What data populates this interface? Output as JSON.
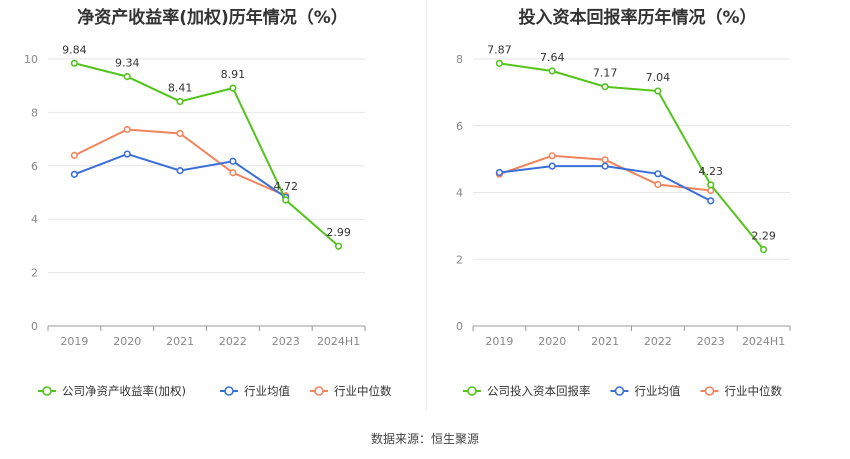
{
  "source_text": "数据来源：恒生聚源",
  "colors": {
    "company": "#52c41a",
    "avg": "#3a6fd8",
    "median": "#f0845c",
    "grid": "#e6e6e6",
    "axis": "#999999"
  },
  "chart_data": [
    {
      "type": "line",
      "title": "净资产收益率(加权)历年情况（%）",
      "categories": [
        "2019",
        "2020",
        "2021",
        "2022",
        "2023",
        "2024H1"
      ],
      "ylim": [
        0,
        10
      ],
      "yticks": [
        0,
        2,
        4,
        6,
        8,
        10
      ],
      "grid": true,
      "legend_position": "bottom",
      "series": [
        {
          "name": "公司净资产收益率(加权)",
          "values": [
            9.84,
            9.34,
            8.41,
            8.91,
            4.72,
            2.99
          ],
          "labels": [
            "9.84",
            "9.34",
            "8.41",
            "8.91",
            "4.72",
            "2.99"
          ],
          "color": "#52c41a"
        },
        {
          "name": "行业均值",
          "values": [
            5.68,
            6.44,
            5.82,
            6.17,
            4.82,
            null
          ],
          "color": "#3a6fd8"
        },
        {
          "name": "行业中位数",
          "values": [
            6.39,
            7.36,
            7.21,
            5.74,
            4.88,
            null
          ],
          "color": "#f0845c"
        }
      ]
    },
    {
      "type": "line",
      "title": "投入资本回报率历年情况（%）",
      "categories": [
        "2019",
        "2020",
        "2021",
        "2022",
        "2023",
        "2024H1"
      ],
      "ylim": [
        0,
        8
      ],
      "yticks": [
        0,
        2,
        4,
        6,
        8
      ],
      "grid": true,
      "legend_position": "bottom",
      "series": [
        {
          "name": "公司投入资本回报率",
          "values": [
            7.87,
            7.64,
            7.17,
            7.04,
            4.23,
            2.29
          ],
          "labels": [
            "7.87",
            "7.64",
            "7.17",
            "7.04",
            "4.23",
            "2.29"
          ],
          "color": "#52c41a"
        },
        {
          "name": "行业均值",
          "values": [
            4.6,
            4.79,
            4.79,
            4.56,
            3.75,
            null
          ],
          "color": "#3a6fd8"
        },
        {
          "name": "行业中位数",
          "values": [
            4.55,
            5.1,
            4.98,
            4.24,
            4.06,
            null
          ],
          "color": "#f0845c"
        }
      ]
    }
  ]
}
